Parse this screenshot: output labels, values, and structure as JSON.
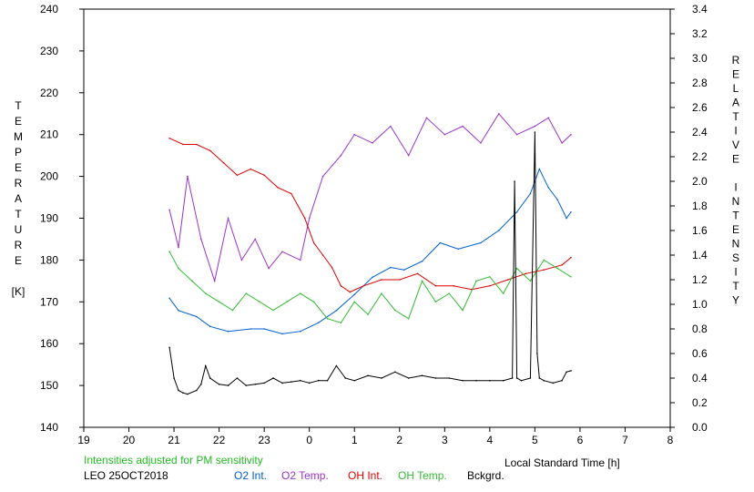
{
  "chart_data": {
    "type": "line",
    "left_axis_vertical_label": [
      "T",
      "E",
      "M",
      "P",
      "E",
      "R",
      "A",
      "T",
      "U",
      "R",
      "E",
      "",
      "[K]"
    ],
    "right_axis_vertical_label": [
      "R",
      "E",
      "L",
      "A",
      "T",
      "I",
      "V",
      "E",
      "",
      "I",
      "N",
      "T",
      "E",
      "N",
      "S",
      "I",
      "T",
      "Y"
    ],
    "xlabel": "Local Standard Time [h]",
    "xlim": [
      19,
      8
    ],
    "x_ticks": [
      "19",
      "20",
      "21",
      "22",
      "23",
      "0",
      "1",
      "2",
      "3",
      "4",
      "5",
      "6",
      "7",
      "8"
    ],
    "ylim_left": [
      140,
      240
    ],
    "y_ticks_left": [
      "140",
      "150",
      "160",
      "170",
      "180",
      "190",
      "200",
      "210",
      "220",
      "230",
      "240"
    ],
    "ylim_right": [
      0.0,
      3.4
    ],
    "y_ticks_right": [
      "0.0",
      "0.2",
      "0.4",
      "0.6",
      "0.8",
      "1.0",
      "1.2",
      "1.4",
      "1.6",
      "1.8",
      "2.0",
      "2.2",
      "2.4",
      "2.6",
      "2.8",
      "3.0",
      "3.2",
      "3.4"
    ],
    "note": "Intensities adjusted for PM sensitivity",
    "station_label": "LEO 25OCT2018",
    "series": [
      {
        "name": "O2 Int.",
        "axis": "right",
        "color": "#0060d0",
        "x": [
          20.9,
          21.1,
          21.5,
          21.8,
          22.2,
          22.7,
          23.0,
          23.4,
          23.8,
          24.2,
          24.6,
          25.0,
          25.4,
          25.8,
          26.1,
          26.5,
          26.9,
          27.3,
          27.8,
          28.2,
          28.6,
          28.9,
          29.1,
          29.3,
          29.5,
          29.7,
          29.8
        ],
        "values": [
          1.05,
          0.95,
          0.9,
          0.82,
          0.78,
          0.8,
          0.8,
          0.76,
          0.78,
          0.85,
          0.95,
          1.08,
          1.22,
          1.3,
          1.28,
          1.35,
          1.5,
          1.45,
          1.5,
          1.6,
          1.75,
          1.9,
          2.1,
          1.95,
          1.85,
          1.7,
          1.75
        ]
      },
      {
        "name": "O2 Temp.",
        "axis": "left",
        "color": "#9933cc",
        "x": [
          20.9,
          21.1,
          21.3,
          21.6,
          21.9,
          22.2,
          22.5,
          22.8,
          23.1,
          23.4,
          23.8,
          24.0,
          24.3,
          24.7,
          25.0,
          25.4,
          25.8,
          26.2,
          26.6,
          27.0,
          27.4,
          27.8,
          28.2,
          28.6,
          29.0,
          29.3,
          29.6,
          29.8
        ],
        "values": [
          192,
          183,
          200,
          185,
          175,
          190,
          180,
          185,
          178,
          182,
          180,
          190,
          200,
          205,
          210,
          208,
          212,
          205,
          214,
          210,
          212,
          208,
          215,
          210,
          212,
          214,
          208,
          210
        ]
      },
      {
        "name": "OH Int.",
        "axis": "right",
        "color": "#dd0000",
        "x": [
          20.9,
          21.2,
          21.5,
          21.8,
          22.1,
          22.4,
          22.7,
          23.0,
          23.3,
          23.6,
          23.9,
          24.1,
          24.3,
          24.5,
          24.7,
          24.9,
          25.2,
          25.6,
          26.0,
          26.4,
          26.8,
          27.2,
          27.6,
          28.0,
          28.4,
          28.8,
          29.2,
          29.6,
          29.8
        ],
        "values": [
          2.35,
          2.3,
          2.3,
          2.25,
          2.15,
          2.05,
          2.1,
          2.05,
          1.95,
          1.9,
          1.7,
          1.5,
          1.4,
          1.3,
          1.15,
          1.1,
          1.15,
          1.2,
          1.2,
          1.25,
          1.15,
          1.15,
          1.12,
          1.15,
          1.2,
          1.25,
          1.28,
          1.32,
          1.38
        ]
      },
      {
        "name": "OH Temp.",
        "axis": "left",
        "color": "#33bb33",
        "x": [
          20.9,
          21.1,
          21.4,
          21.7,
          22.0,
          22.3,
          22.6,
          22.9,
          23.2,
          23.5,
          23.8,
          24.1,
          24.4,
          24.7,
          25.0,
          25.3,
          25.6,
          25.9,
          26.2,
          26.5,
          26.8,
          27.1,
          27.4,
          27.7,
          28.0,
          28.3,
          28.6,
          28.9,
          29.2,
          29.5,
          29.8
        ],
        "values": [
          182,
          178,
          175,
          172,
          170,
          168,
          172,
          170,
          168,
          170,
          172,
          170,
          166,
          165,
          170,
          167,
          172,
          168,
          166,
          175,
          170,
          172,
          168,
          175,
          176,
          172,
          178,
          175,
          180,
          178,
          176
        ]
      },
      {
        "name": "Bckgrd.",
        "axis": "right",
        "color": "#000000",
        "x": [
          20.9,
          21.0,
          21.1,
          21.2,
          21.3,
          21.5,
          21.6,
          21.7,
          21.8,
          22.0,
          22.2,
          22.4,
          22.6,
          22.8,
          23.0,
          23.2,
          23.4,
          23.6,
          23.8,
          24.0,
          24.2,
          24.4,
          24.6,
          24.8,
          25.0,
          25.3,
          25.6,
          25.9,
          26.2,
          26.5,
          26.8,
          27.1,
          27.4,
          27.7,
          28.0,
          28.3,
          28.5,
          28.55,
          28.6,
          28.7,
          28.9,
          29.0,
          29.05,
          29.1,
          29.2,
          29.4,
          29.6,
          29.7,
          29.8
        ],
        "values": [
          0.65,
          0.4,
          0.3,
          0.28,
          0.27,
          0.3,
          0.35,
          0.5,
          0.4,
          0.35,
          0.34,
          0.4,
          0.34,
          0.35,
          0.36,
          0.4,
          0.36,
          0.37,
          0.38,
          0.36,
          0.38,
          0.38,
          0.5,
          0.4,
          0.38,
          0.42,
          0.4,
          0.45,
          0.4,
          0.42,
          0.4,
          0.4,
          0.38,
          0.38,
          0.38,
          0.38,
          0.4,
          2.0,
          0.4,
          0.38,
          0.4,
          2.4,
          0.6,
          0.4,
          0.38,
          0.36,
          0.38,
          0.45,
          0.46
        ]
      }
    ],
    "legend_placement": "bottom"
  }
}
